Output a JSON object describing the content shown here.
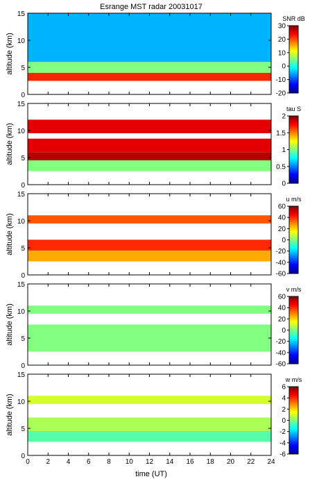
{
  "title": "Esrange MST radar 20031017",
  "xlabel": "time (UT)",
  "x_ticks": [
    0,
    2,
    4,
    6,
    8,
    10,
    12,
    14,
    16,
    18,
    20,
    22,
    24
  ],
  "chart_data": [
    {
      "type": "heatmap",
      "name": "SNR",
      "ylabel": "altitude (km)",
      "xlim": [
        0,
        24
      ],
      "ylim": [
        0,
        15
      ],
      "y_ticks": [
        0,
        5,
        10,
        15
      ],
      "colorbar": {
        "label": "SNR dB",
        "range": [
          -20,
          30
        ],
        "ticks": [
          -20,
          -10,
          0,
          10,
          20,
          30
        ]
      },
      "layers": [
        {
          "alt_range": [
            2.5,
            4.0
          ],
          "value": 22
        },
        {
          "alt_range": [
            4.0,
            6.0
          ],
          "value": 5
        },
        {
          "alt_range": [
            6.0,
            15.0
          ],
          "value": -5
        }
      ]
    },
    {
      "type": "heatmap",
      "name": "tau",
      "ylabel": "altitude (km)",
      "xlim": [
        0,
        24
      ],
      "ylim": [
        0,
        15
      ],
      "y_ticks": [
        0,
        5,
        10,
        15
      ],
      "colorbar": {
        "label": "tau S",
        "range": [
          0,
          2
        ],
        "ticks": [
          0,
          0.5,
          1,
          1.5,
          2
        ]
      },
      "layers": [
        {
          "alt_range": [
            2.5,
            4.5
          ],
          "value": 1.0
        },
        {
          "alt_range": [
            4.5,
            6.0
          ],
          "value": 1.9
        },
        {
          "alt_range": [
            6.0,
            8.5
          ],
          "value": 1.8
        },
        {
          "alt_range": [
            9.5,
            12.0
          ],
          "value": 1.8
        }
      ]
    },
    {
      "type": "heatmap",
      "name": "u",
      "ylabel": "altitude (km)",
      "xlim": [
        0,
        24
      ],
      "ylim": [
        0,
        15
      ],
      "y_ticks": [
        0,
        5,
        10,
        15
      ],
      "colorbar": {
        "label": "u m/s",
        "range": [
          -60,
          60
        ],
        "ticks": [
          -60,
          -40,
          -20,
          0,
          20,
          40,
          60
        ]
      },
      "layers": [
        {
          "alt_range": [
            2.5,
            4.5
          ],
          "value": 25
        },
        {
          "alt_range": [
            4.5,
            6.5
          ],
          "value": 40
        },
        {
          "alt_range": [
            9.5,
            11.0
          ],
          "value": 35
        }
      ]
    },
    {
      "type": "heatmap",
      "name": "v",
      "ylabel": "altitude (km)",
      "xlim": [
        0,
        24
      ],
      "ylim": [
        0,
        15
      ],
      "y_ticks": [
        0,
        5,
        10,
        15
      ],
      "colorbar": {
        "label": "v m/s",
        "range": [
          -60,
          60
        ],
        "ticks": [
          -60,
          -40,
          -20,
          0,
          20,
          40,
          60
        ]
      },
      "layers": [
        {
          "alt_range": [
            2.5,
            7.5
          ],
          "value": 0
        },
        {
          "alt_range": [
            9.5,
            11.0
          ],
          "value": 0
        }
      ]
    },
    {
      "type": "heatmap",
      "name": "w",
      "ylabel": "altitude (km)",
      "xlim": [
        0,
        24
      ],
      "ylim": [
        0,
        15
      ],
      "y_ticks": [
        0,
        5,
        10,
        15
      ],
      "colorbar": {
        "label": "w m/s",
        "range": [
          -6,
          6
        ],
        "ticks": [
          -6,
          -4,
          -2,
          0,
          2,
          4,
          6
        ]
      },
      "layers": [
        {
          "alt_range": [
            2.5,
            4.5
          ],
          "value": -0.5
        },
        {
          "alt_range": [
            4.5,
            7.0
          ],
          "value": 0.5
        },
        {
          "alt_range": [
            9.5,
            11.0
          ],
          "value": 1.0
        }
      ]
    }
  ]
}
